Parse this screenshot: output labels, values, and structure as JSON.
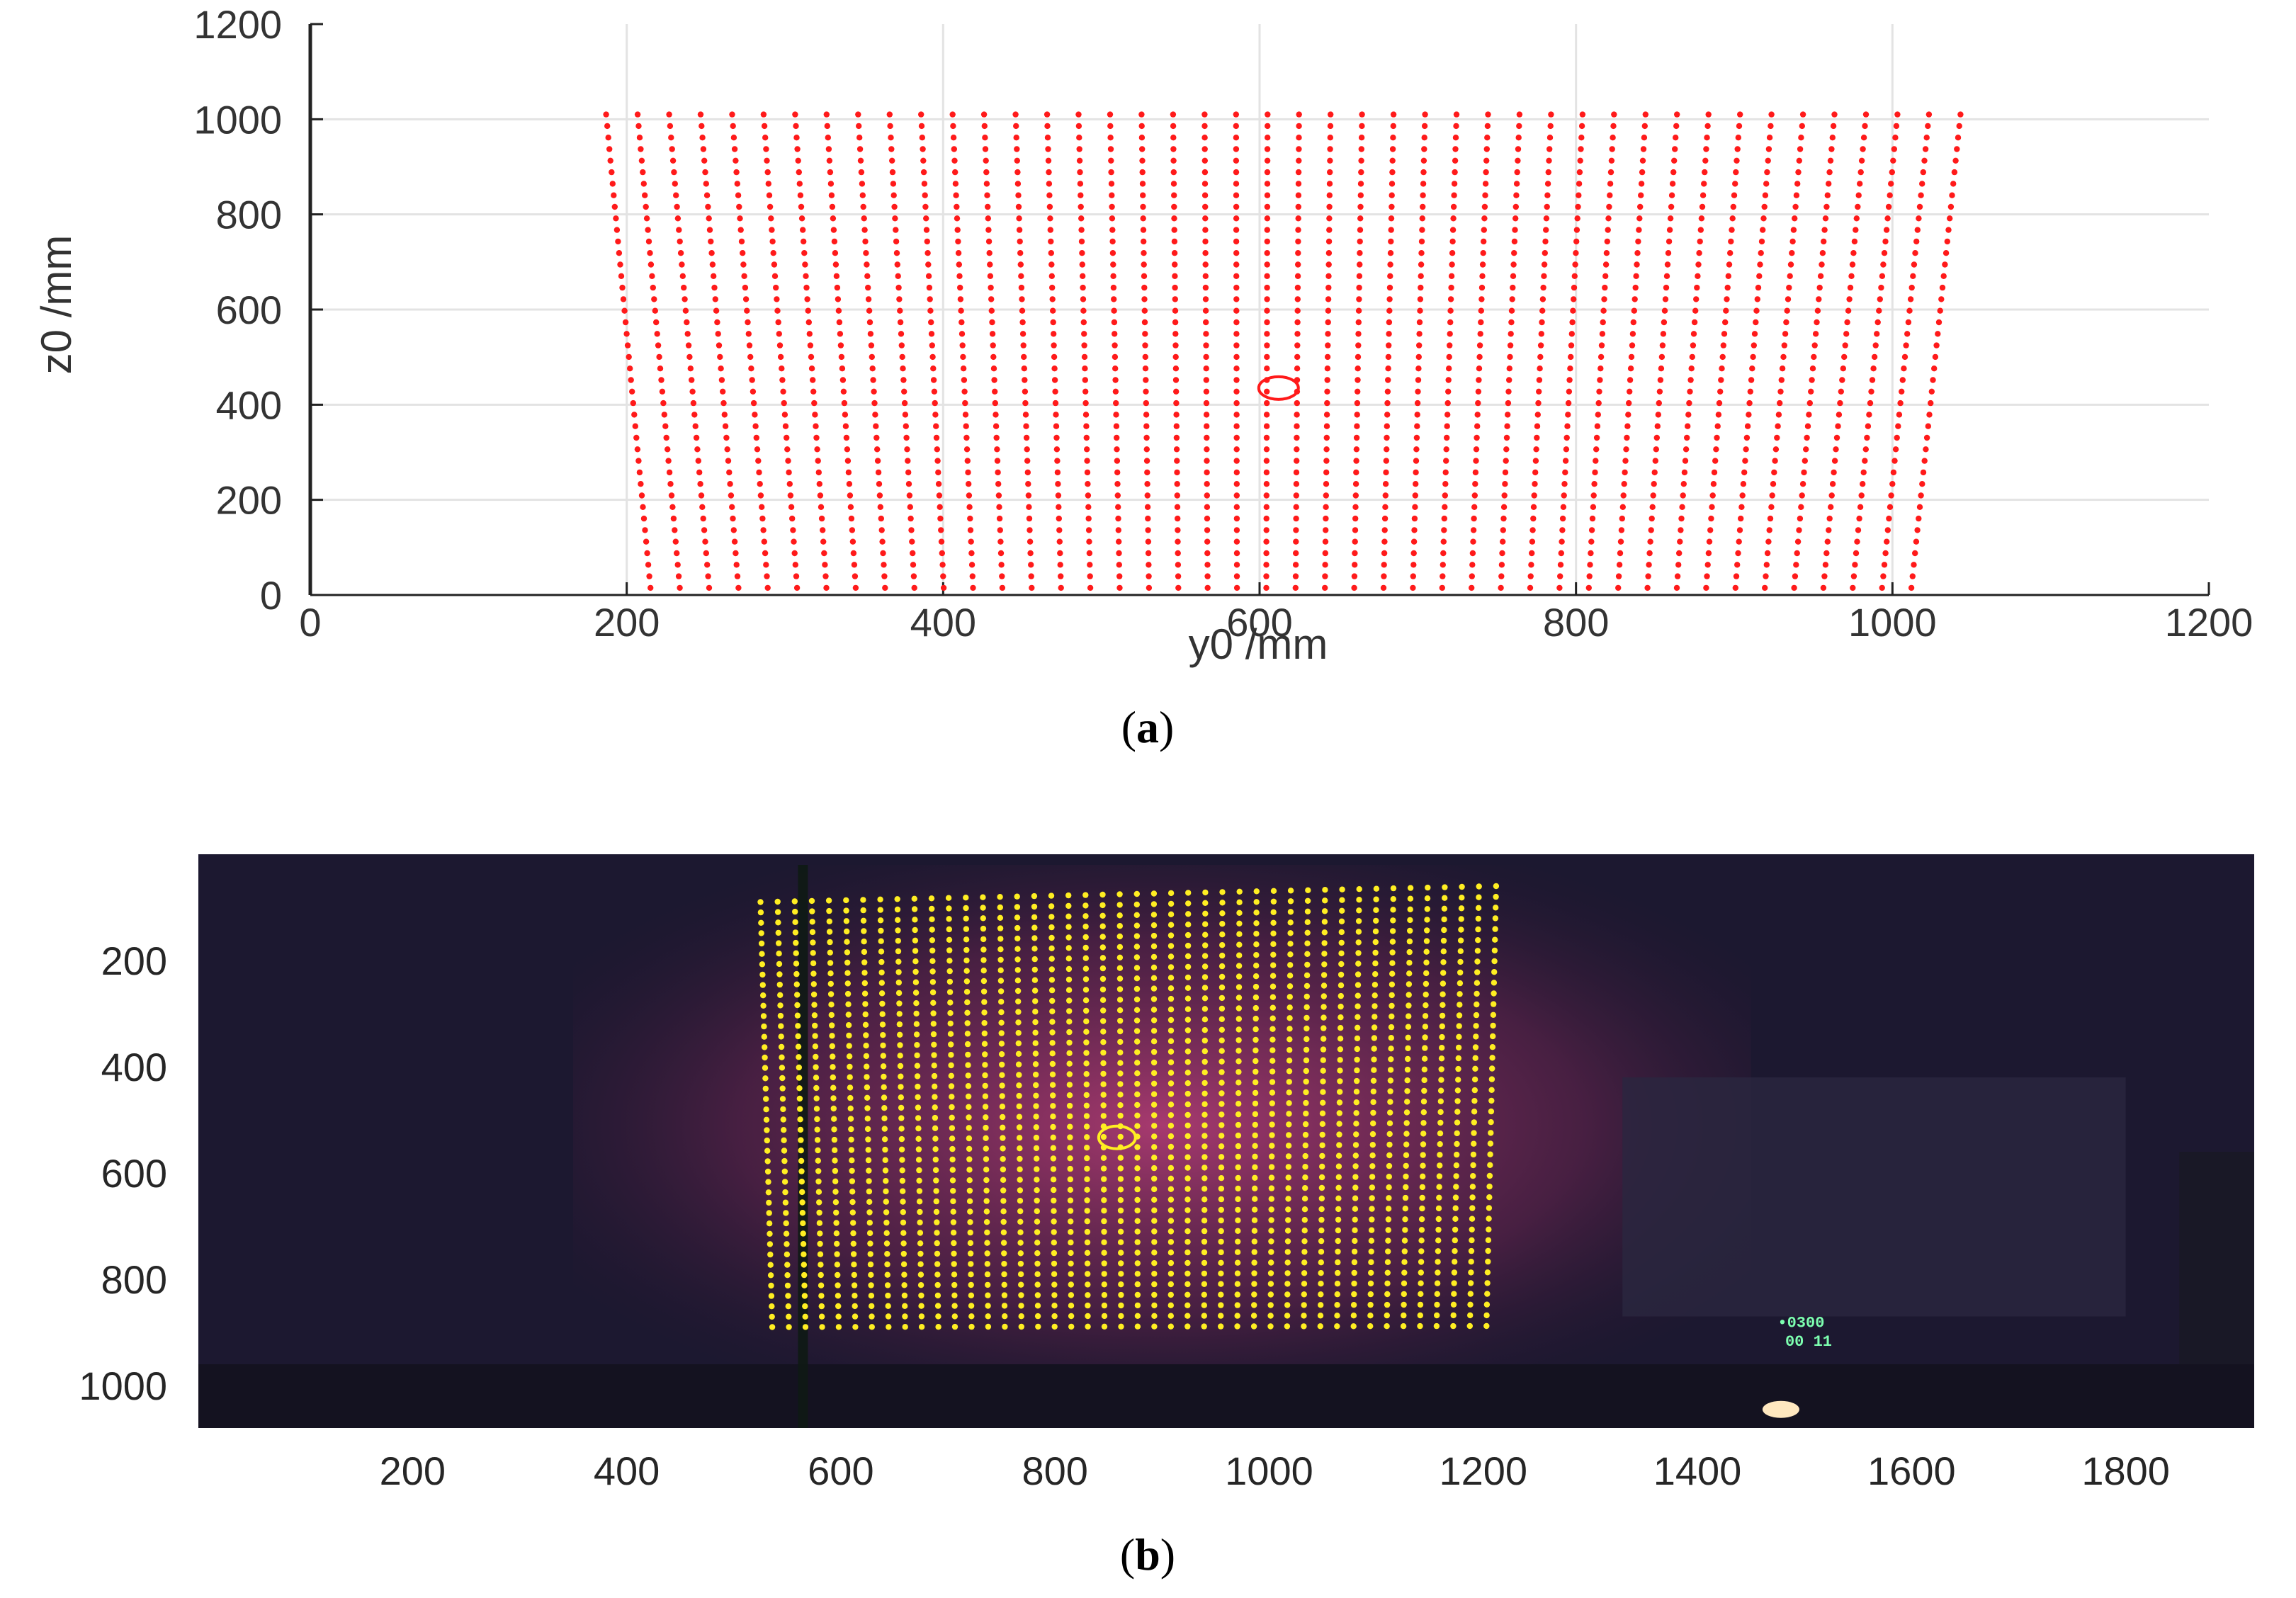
{
  "chart_data": [
    {
      "type": "scatter",
      "panel": "a",
      "caption_letter": "a",
      "xlabel": "y0 /mm",
      "ylabel": "z0 /mm",
      "xlim": [
        0,
        1200
      ],
      "ylim": [
        0,
        1200
      ],
      "xticks": [
        0,
        200,
        400,
        600,
        800,
        1000,
        1200
      ],
      "yticks": [
        0,
        200,
        400,
        600,
        800,
        1000,
        1200
      ],
      "grid": true,
      "marker_color": "#ff1a1a",
      "grid_description": "trapezoidal array of points, 44 columns x 42 rows",
      "grid_columns": 44,
      "grid_rows": 42,
      "corners": {
        "top_left": [
          187,
          1010
        ],
        "top_right": [
          1043,
          1010
        ],
        "bottom_left": [
          215,
          15
        ],
        "bottom_right": [
          1012,
          15
        ]
      },
      "highlight_point": [
        612,
        435
      ]
    },
    {
      "type": "scatter",
      "panel": "b",
      "caption_letter": "b",
      "xlim": [
        0,
        1920
      ],
      "ylim": [
        1080,
        0
      ],
      "xticks": [
        200,
        400,
        600,
        800,
        1000,
        1200,
        1400,
        1600,
        1800
      ],
      "yticks": [
        200,
        400,
        600,
        800,
        1000
      ],
      "background_color": "#1c1830",
      "marker_color": "#ffee22",
      "grid_columns": 44,
      "grid_rows": 42,
      "corners": {
        "top_left": [
          525,
          90
        ],
        "top_right": [
          1212,
          60
        ],
        "bottom_left": [
          536,
          890
        ],
        "bottom_right": [
          1203,
          888
        ]
      },
      "highlight_point": [
        858,
        533
      ],
      "timer_text": [
        "•0300",
        "00 11"
      ],
      "timer_color": "#7dffb0"
    }
  ]
}
